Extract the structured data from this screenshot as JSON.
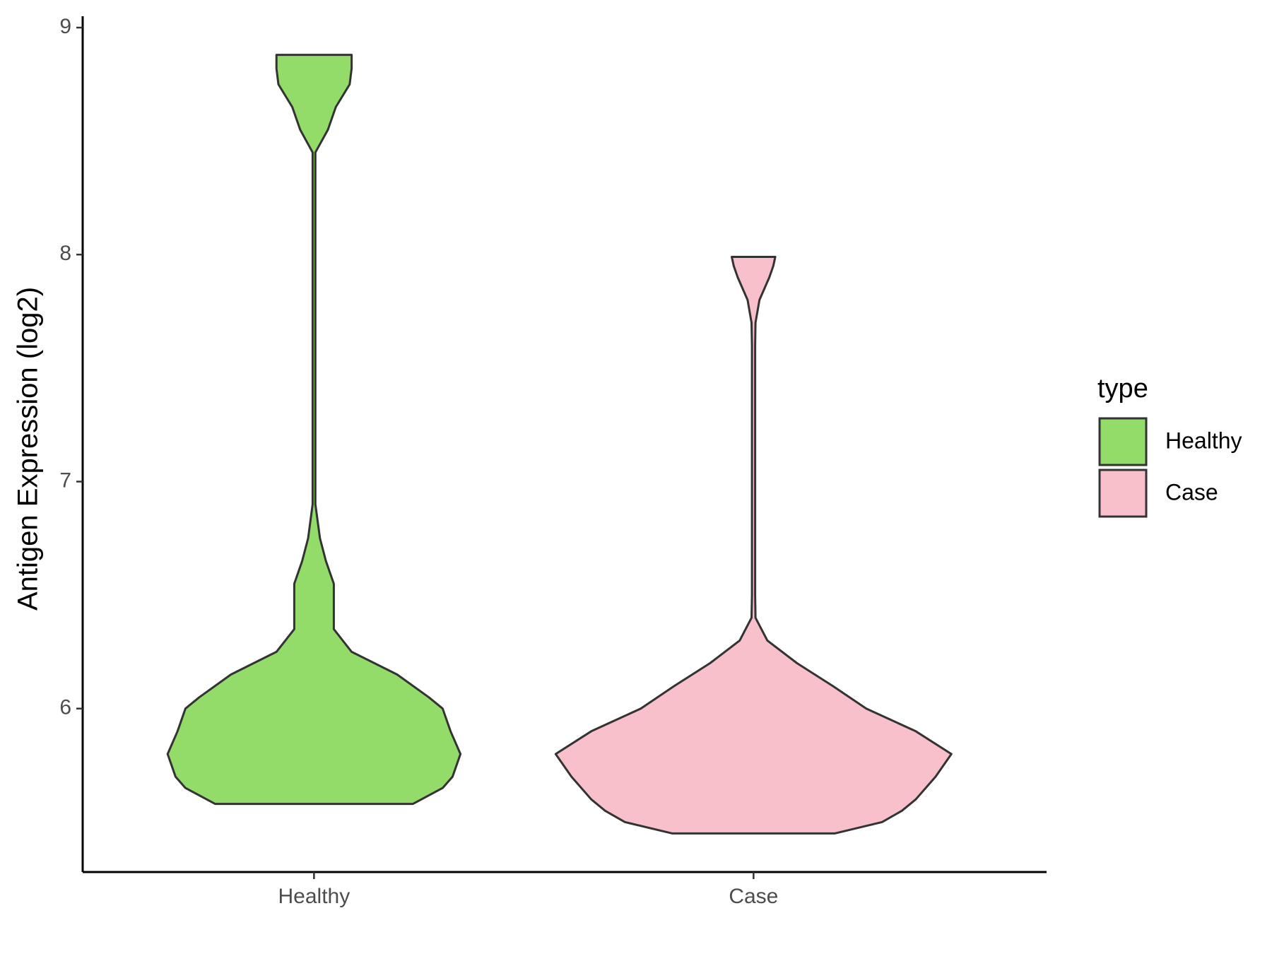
{
  "chart_data": {
    "type": "violin",
    "y_label": "Antigen Expression (log2)",
    "categories": [
      "Healthy",
      "Case"
    ],
    "legend_title": "type",
    "legend": "right",
    "ylim": [
      5.28,
      9.05
    ],
    "yticks": [
      6,
      7,
      8,
      9
    ],
    "series": [
      {
        "name": "Healthy",
        "color": "#93dc6a",
        "y": [
          5.58,
          5.65,
          5.7,
          5.8,
          5.9,
          6.0,
          6.05,
          6.15,
          6.25,
          6.35,
          6.45,
          6.55,
          6.65,
          6.75,
          6.9,
          7.0,
          8.3,
          8.45,
          8.55,
          8.65,
          8.75,
          8.82,
          8.88
        ],
        "density": [
          0.5,
          0.65,
          0.7,
          0.74,
          0.69,
          0.65,
          0.58,
          0.42,
          0.19,
          0.1,
          0.1,
          0.1,
          0.06,
          0.03,
          0.007,
          0.007,
          0.007,
          0.007,
          0.07,
          0.11,
          0.18,
          0.19,
          0.19
        ]
      },
      {
        "name": "Case",
        "color": "#f8c0cb",
        "y": [
          5.45,
          5.5,
          5.55,
          5.6,
          5.7,
          5.8,
          5.9,
          6.0,
          6.1,
          6.2,
          6.3,
          6.4,
          6.5,
          7.6,
          7.7,
          7.8,
          7.9,
          7.95,
          7.99
        ],
        "density": [
          0.41,
          0.65,
          0.75,
          0.82,
          0.92,
          1.0,
          0.82,
          0.57,
          0.4,
          0.22,
          0.07,
          0.01,
          0.008,
          0.008,
          0.01,
          0.03,
          0.08,
          0.1,
          0.11
        ]
      }
    ]
  }
}
